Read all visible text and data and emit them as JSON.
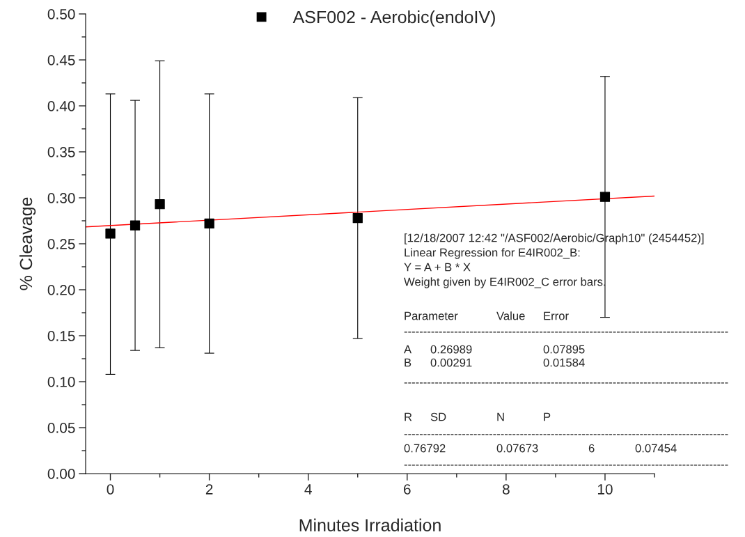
{
  "chart_data": {
    "type": "scatter",
    "xlabel": "Minutes Irradiation",
    "ylabel": "% Cleavage",
    "xlim": [
      -0.5,
      11
    ],
    "xticks": [
      0,
      2,
      4,
      6,
      8,
      10
    ],
    "ylim": [
      0,
      0.5
    ],
    "yticks": [
      {
        "value": 0,
        "label": "0.00"
      },
      {
        "value": 0.05,
        "label": "0.05"
      },
      {
        "value": 0.1,
        "label": "0.10"
      },
      {
        "value": 0.15,
        "label": "0.15"
      },
      {
        "value": 0.2,
        "label": "0.20"
      },
      {
        "value": 0.25,
        "label": "0.25"
      },
      {
        "value": 0.3,
        "label": "0.30"
      },
      {
        "value": 0.35,
        "label": "0.35"
      },
      {
        "value": 0.4,
        "label": "0.40"
      },
      {
        "value": 0.45,
        "label": "0.45"
      },
      {
        "value": 0.5,
        "label": "0.50"
      }
    ],
    "grid": false,
    "legend": "top",
    "marker": "square",
    "series": [
      {
        "name": "ASF002 - Aerobic(endoIV)",
        "color": "#000000",
        "x": [
          0,
          0.5,
          1,
          2,
          5,
          10
        ],
        "values": [
          0.261,
          0.27,
          0.293,
          0.272,
          0.278,
          0.301
        ],
        "errors": [
          [
            0.108,
            0.413
          ],
          [
            0.134,
            0.406
          ],
          [
            0.137,
            0.449
          ],
          [
            0.131,
            0.413
          ],
          [
            0.147,
            0.409
          ],
          [
            0.17,
            0.432
          ]
        ]
      },
      {
        "type": "line",
        "color": "#ff0000",
        "x": [
          -0.5,
          11
        ],
        "values": [
          0.2684,
          0.3019
        ],
        "marker": "none",
        "line_style": "solid"
      }
    ],
    "annotations": [
      "[12/18/2007 12:42 \"/ASF002/Aerobic/Graph10\" (2454452)]",
      "Linear Regression for E4IR002_B:",
      "Y = A + B * X",
      "Weight given by E4IR002_C error bars.",
      "Parameter",
      "Value",
      "Error",
      "A",
      "0.26989",
      "0.07895",
      "B",
      "0.00291",
      "0.01584",
      "R",
      "SD",
      "N",
      "P",
      "0.76792",
      "0.07673",
      "6",
      "0.07454",
      "------------------------------------------------------------------------------------",
      "------------------------------------------------------------------------------------",
      "------------------------------------------------------------------------------------",
      "------------------------------------------------------------------------------------"
    ]
  }
}
